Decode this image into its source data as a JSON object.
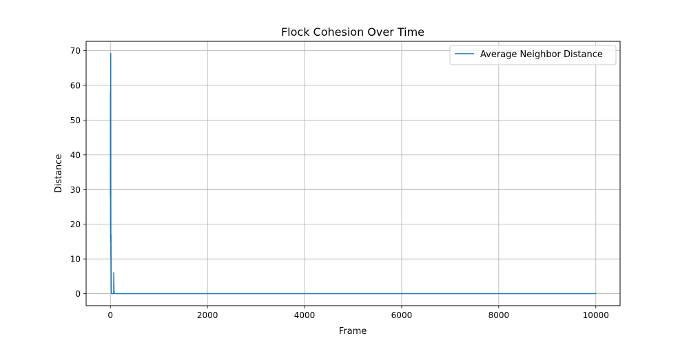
{
  "chart_data": {
    "type": "line",
    "title": "Flock Cohesion Over Time",
    "xlabel": "Frame",
    "ylabel": "Distance",
    "xlim": [
      -500,
      10500
    ],
    "ylim": [
      -3.46,
      72.7
    ],
    "xticks": [
      0,
      2000,
      4000,
      6000,
      8000,
      10000
    ],
    "xtick_labels": [
      "0",
      "2000",
      "4000",
      "6000",
      "8000",
      "10000"
    ],
    "yticks": [
      0,
      10,
      20,
      30,
      40,
      50,
      60,
      70
    ],
    "ytick_labels": [
      "0",
      "10",
      "20",
      "30",
      "40",
      "50",
      "60",
      "70"
    ],
    "grid": true,
    "legend_position": "top-right",
    "series": [
      {
        "name": "Average Neighbor Distance",
        "color": "#1f77b4",
        "x": [
          0,
          1,
          2,
          3,
          4,
          5,
          6,
          7,
          8,
          9,
          10,
          11,
          12,
          13,
          14,
          15,
          16,
          17,
          18,
          19,
          20,
          21,
          22,
          24,
          26,
          28,
          30,
          32,
          35,
          38,
          40,
          45,
          50,
          55,
          60,
          65,
          68,
          70,
          72,
          75,
          78,
          80,
          90,
          100,
          150,
          200,
          500,
          1000,
          2000,
          5000,
          8000,
          10000
        ],
        "y": [
          28.0,
          58.0,
          45.0,
          30.0,
          15.0,
          40.0,
          55.0,
          69.2,
          50.0,
          30.0,
          17.0,
          10.0,
          14.5,
          17.0,
          12.0,
          8.0,
          5.0,
          3.0,
          1.5,
          0.5,
          0.2,
          0.1,
          0.0,
          0.0,
          0.0,
          0.0,
          0.0,
          0.0,
          0.0,
          0.0,
          0.0,
          0.0,
          0.0,
          0.0,
          0.0,
          0.0,
          0.0,
          6.0,
          3.0,
          1.0,
          0.3,
          0.1,
          0.0,
          0.0,
          0.0,
          0.0,
          0.0,
          0.0,
          0.0,
          0.0,
          0.0,
          0.0
        ]
      }
    ]
  }
}
